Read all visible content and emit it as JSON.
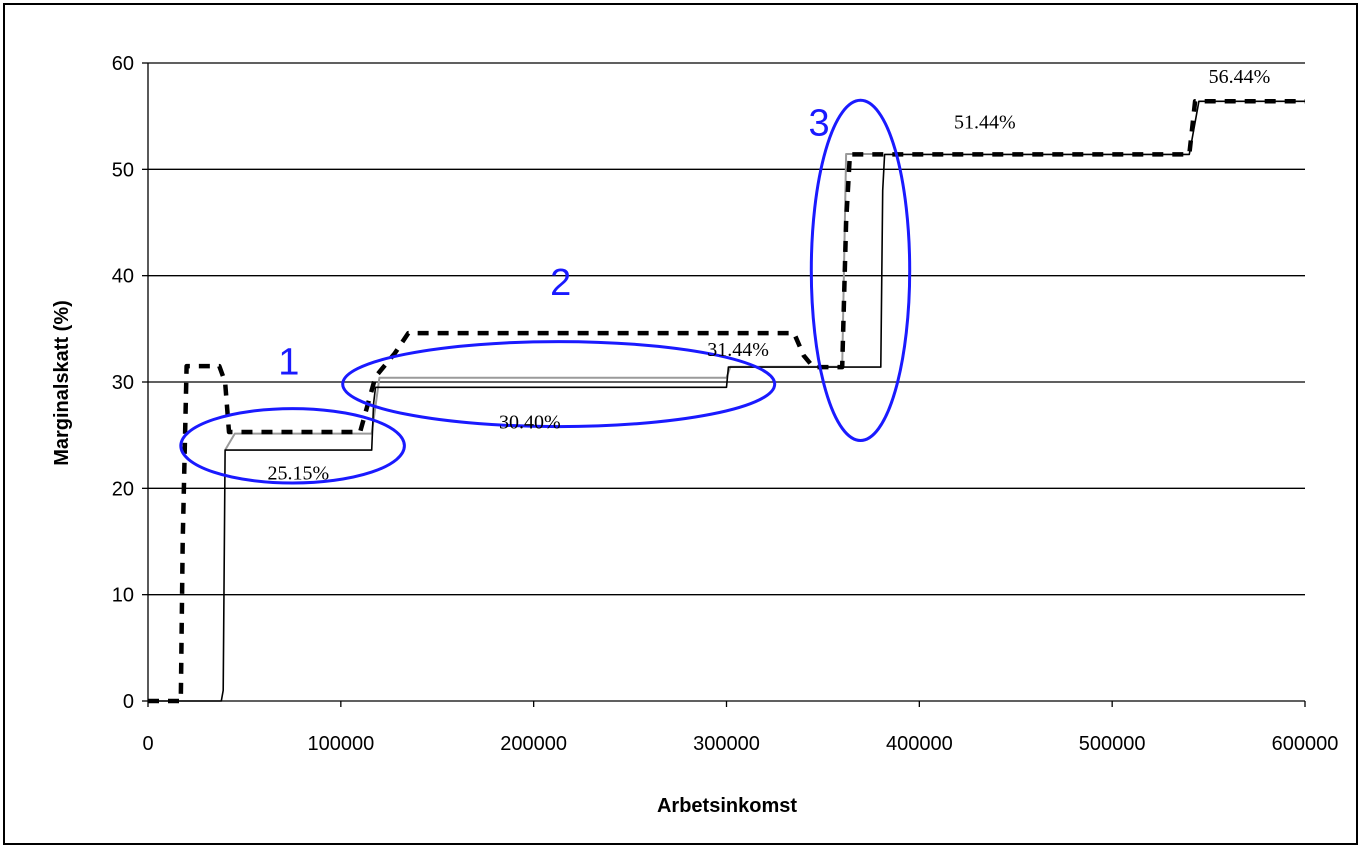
{
  "chart_data": {
    "type": "line",
    "title": "",
    "xlabel": "Arbetsinkomst",
    "ylabel": "Marginalskatt (%)",
    "xlim": [
      0,
      600000
    ],
    "ylim": [
      0,
      60
    ],
    "x_ticks": [
      0,
      100000,
      200000,
      300000,
      400000,
      500000,
      600000
    ],
    "x_tick_labels": [
      "0",
      "100000",
      "200000",
      "300000",
      "400000",
      "500000",
      "600000"
    ],
    "y_ticks": [
      0,
      10,
      20,
      30,
      40,
      50,
      60
    ],
    "y_tick_labels": [
      "0",
      "10",
      "20",
      "30",
      "40",
      "50",
      "60"
    ],
    "grid": "horizontal",
    "legend": "none",
    "series": [
      {
        "style": "solid-black",
        "color": "#000000",
        "x": [
          0,
          38000,
          39000,
          40000,
          116000,
          117000,
          118000,
          300000,
          301000,
          380000,
          381000,
          382000,
          540000,
          545000,
          600000
        ],
        "y": [
          0,
          0,
          1,
          23.6,
          23.6,
          28,
          29.5,
          29.5,
          31.4,
          31.4,
          48,
          51.4,
          51.4,
          56.4,
          56.4
        ]
      },
      {
        "style": "solid-gray",
        "color": "#9a9a9a",
        "x": [
          40000,
          45000,
          116000,
          120000,
          300000,
          302000,
          345000,
          348000,
          360000,
          362000,
          380000
        ],
        "y": [
          23.6,
          25.15,
          25.15,
          30.4,
          30.4,
          31.44,
          31.44,
          31.44,
          31.44,
          51.44,
          51.44
        ]
      },
      {
        "style": "dashed-black",
        "color": "#000000",
        "x": [
          0,
          17000,
          18000,
          20000,
          37000,
          40000,
          42000,
          110000,
          118000,
          128000,
          135000,
          335000,
          340000,
          345000,
          360000,
          362000,
          364000,
          540000,
          543000,
          600000
        ],
        "y": [
          0,
          0,
          15,
          31.5,
          31.5,
          30,
          25.3,
          25.3,
          30.5,
          32.7,
          34.6,
          34.6,
          32.5,
          31.4,
          31.4,
          45,
          51.4,
          51.4,
          56.4,
          56.4
        ]
      }
    ],
    "annotations": [
      {
        "text": "25.15%",
        "x": 62000,
        "y": 21.5
      },
      {
        "text": "30.40%",
        "x": 182000,
        "y": 26.3
      },
      {
        "text": "31.44%",
        "x": 290000,
        "y": 33.1
      },
      {
        "text": "51.44%",
        "x": 418000,
        "y": 54.5
      },
      {
        "text": "56.44%",
        "x": 550000,
        "y": 58.8
      }
    ],
    "zones": [
      {
        "label": "1",
        "color": "#1a1aff",
        "ellipse_x": [
          17000,
          133000
        ],
        "ellipse_y": [
          20.5,
          27.5
        ],
        "label_x": 73000,
        "label_y": 32
      },
      {
        "label": "2",
        "color": "#1a1aff",
        "ellipse_x": [
          101000,
          325000
        ],
        "ellipse_y": [
          25.8,
          33.8
        ],
        "label_x": 214000,
        "label_y": 39.5
      },
      {
        "label": "3",
        "color": "#1a1aff",
        "ellipse_x": [
          344000,
          395000
        ],
        "ellipse_y": [
          24.5,
          56.5
        ],
        "label_x": 348000,
        "label_y": 54.5
      }
    ]
  }
}
